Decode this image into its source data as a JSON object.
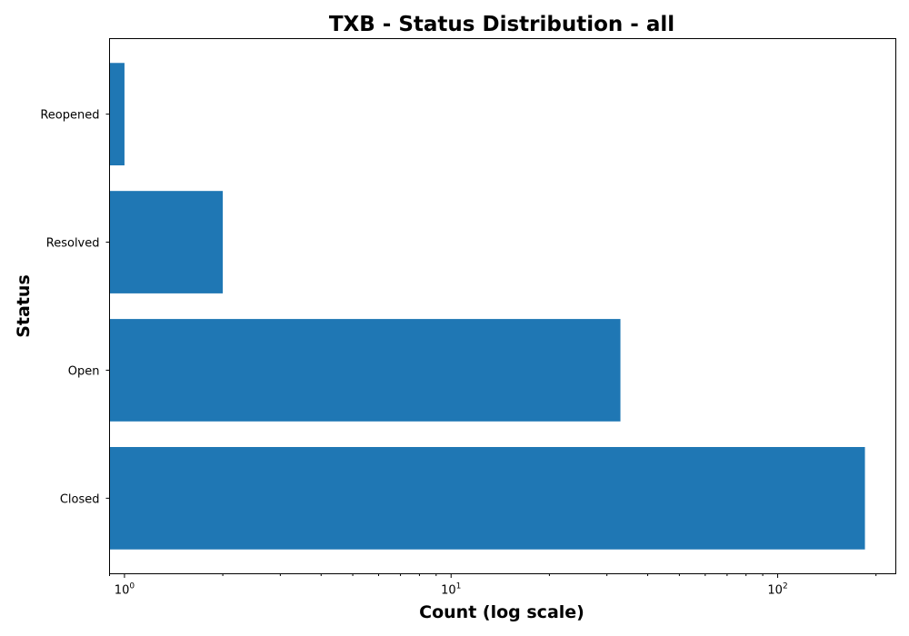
{
  "chart_data": {
    "type": "bar",
    "orientation": "horizontal",
    "title": "TXB - Status Distribution - all",
    "xlabel": "Count (log scale)",
    "ylabel": "Status",
    "x_scale": "log",
    "xlim": [
      0.9,
      230
    ],
    "categories": [
      "Closed",
      "Open",
      "Resolved",
      "Reopened"
    ],
    "values": [
      185,
      33,
      2,
      1
    ],
    "x_major_ticks": [
      {
        "value": 1,
        "base": "10",
        "exp": "0"
      },
      {
        "value": 10,
        "base": "10",
        "exp": "1"
      },
      {
        "value": 100,
        "base": "10",
        "exp": "2"
      }
    ],
    "bar_color": "#1f77b4",
    "grid": false,
    "legend": "none"
  }
}
